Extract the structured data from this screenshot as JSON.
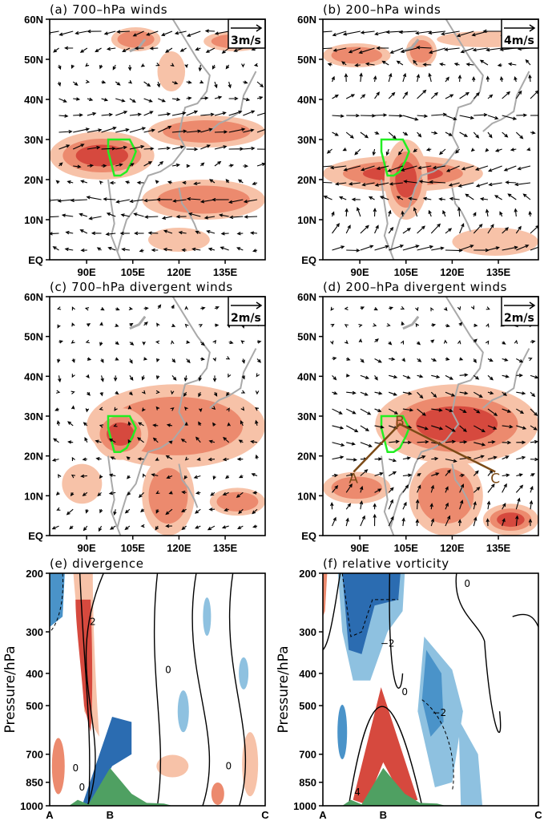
{
  "figure": {
    "colors": {
      "shade_light": "#f7c2a8",
      "shade_mid": "#ec8a6e",
      "shade_dark": "#d6493e",
      "shade_darkest": "#b92d2d",
      "blue_light": "#8ec1e0",
      "blue_mid": "#4a93c9",
      "blue_dark": "#2b6cb1",
      "terrain": "#4fa062",
      "coast": "#a9a9a9",
      "region_outline": "#22ee22",
      "section_line": "#7b4a16"
    }
  },
  "chart_data": [
    {
      "id": "a",
      "type": "vector-map",
      "title": "(a) 700–hPa winds",
      "reference_vector": "3m/s",
      "xticks": [
        "90E",
        "105E",
        "120E",
        "135E"
      ],
      "yticks": [
        "EQ",
        "10N",
        "20N",
        "30N",
        "40N",
        "50N",
        "60N"
      ],
      "xlim_deg": [
        78,
        148
      ],
      "ylim_deg": [
        0,
        60
      ],
      "shaded_regions_deg": [
        {
          "lon": [
            78,
            112
          ],
          "lat": [
            20,
            32
          ],
          "level": 3
        },
        {
          "lon": [
            110,
            148
          ],
          "lat": [
            28,
            36
          ],
          "level": 2
        },
        {
          "lon": [
            108,
            148
          ],
          "lat": [
            10,
            20
          ],
          "level": 2
        },
        {
          "lon": [
            98,
            114
          ],
          "lat": [
            52,
            58
          ],
          "level": 2
        },
        {
          "lon": [
            128,
            148
          ],
          "lat": [
            52,
            57
          ],
          "level": 2
        },
        {
          "lon": [
            113,
            122
          ],
          "lat": [
            42,
            52
          ],
          "level": 1
        },
        {
          "lon": [
            110,
            130
          ],
          "lat": [
            2,
            8
          ],
          "level": 1
        }
      ],
      "flow": [
        {
          "lat": 57,
          "u": -1,
          "v": -0.2
        },
        {
          "lat": 45,
          "u": 0.3,
          "v": -0.3
        },
        {
          "lat": 33,
          "u": 1.2,
          "v": 0.3
        },
        {
          "lat": 26,
          "u": 1.0,
          "v": 0.2
        },
        {
          "lat": 15,
          "u": -1.2,
          "v": 0
        },
        {
          "lat": 5,
          "u": -0.5,
          "v": 0.1
        }
      ]
    },
    {
      "id": "b",
      "type": "vector-map",
      "title": "(b) 200–hPa winds",
      "reference_vector": "4m/s",
      "xticks": [
        "90E",
        "105E",
        "120E",
        "135E"
      ],
      "yticks": [
        "EQ",
        "10N",
        "20N",
        "30N",
        "40N",
        "50N",
        "60N"
      ],
      "xlim_deg": [
        78,
        148
      ],
      "ylim_deg": [
        0,
        60
      ],
      "shaded_regions_deg": [
        {
          "lon": [
            78,
            100
          ],
          "lat": [
            48,
            54
          ],
          "level": 2
        },
        {
          "lon": [
            105,
            115
          ],
          "lat": [
            48,
            56
          ],
          "level": 2
        },
        {
          "lon": [
            115,
            148
          ],
          "lat": [
            53,
            57
          ],
          "level": 1
        },
        {
          "lon": [
            78,
            130
          ],
          "lat": [
            17,
            26
          ],
          "level": 3
        },
        {
          "lon": [
            98,
            112
          ],
          "lat": [
            10,
            30
          ],
          "level": 3
        },
        {
          "lon": [
            120,
            148
          ],
          "lat": [
            1,
            8
          ],
          "level": 1
        }
      ],
      "flow": [
        {
          "lat": 53,
          "u": -1.2,
          "v": -0.2
        },
        {
          "lat": 42,
          "u": 0.4,
          "v": 0.8
        },
        {
          "lat": 35,
          "u": 1.2,
          "v": -0.3
        },
        {
          "lat": 22,
          "u": -1.5,
          "v": -0.3
        },
        {
          "lat": 8,
          "u": 0.3,
          "v": 0.8
        },
        {
          "lat": 3,
          "u": 1.2,
          "v": 0.2
        }
      ]
    },
    {
      "id": "c",
      "type": "vector-map",
      "title": "(c) 700–hPa divergent winds",
      "reference_vector": "2m/s",
      "xticks": [
        "90E",
        "105E",
        "120E",
        "135E"
      ],
      "yticks": [
        "EQ",
        "10N",
        "20N",
        "30N",
        "40N",
        "50N",
        "60N"
      ],
      "xlim_deg": [
        78,
        148
      ],
      "ylim_deg": [
        0,
        60
      ],
      "shaded_regions_deg": [
        {
          "lon": [
            90,
            148
          ],
          "lat": [
            17,
            38
          ],
          "level": 2
        },
        {
          "lon": [
            92,
            110
          ],
          "lat": [
            19,
            32
          ],
          "level": 3
        },
        {
          "lon": [
            108,
            125
          ],
          "lat": [
            0,
            20
          ],
          "level": 2
        },
        {
          "lon": [
            130,
            148
          ],
          "lat": [
            5,
            12
          ],
          "level": 2
        },
        {
          "lon": [
            82,
            95
          ],
          "lat": [
            8,
            18
          ],
          "level": 1
        }
      ],
      "flow": [
        {
          "lat": 55,
          "u": 0.1,
          "v": 0.1
        },
        {
          "lat": 40,
          "u": 0.1,
          "v": -0.3
        },
        {
          "lat": 25,
          "u": -0.3,
          "v": 0.3
        },
        {
          "lat": 10,
          "u": -0.3,
          "v": -0.2
        }
      ]
    },
    {
      "id": "d",
      "type": "vector-map",
      "title": "(d) 200–hPa divergent winds",
      "reference_vector": "2m/s",
      "xticks": [
        "90E",
        "105E",
        "120E",
        "135E"
      ],
      "yticks": [
        "EQ",
        "10N",
        "20N",
        "30N",
        "40N",
        "50N",
        "60N"
      ],
      "xlim_deg": [
        78,
        148
      ],
      "ylim_deg": [
        0,
        60
      ],
      "section_points": [
        {
          "label": "A",
          "lon": 88,
          "lat": 16
        },
        {
          "label": "B",
          "lon": 103,
          "lat": 28
        },
        {
          "label": "C",
          "lon": 134,
          "lat": 16
        }
      ],
      "shaded_regions_deg": [
        {
          "lon": [
            95,
            148
          ],
          "lat": [
            18,
            38
          ],
          "level": 3
        },
        {
          "lon": [
            106,
            130
          ],
          "lat": [
            0,
            20
          ],
          "level": 2
        },
        {
          "lon": [
            78,
            100
          ],
          "lat": [
            8,
            16
          ],
          "level": 2
        },
        {
          "lon": [
            130,
            148
          ],
          "lat": [
            0,
            8
          ],
          "level": 3
        }
      ],
      "flow": [
        {
          "lat": 52,
          "u": 0.1,
          "v": 0.1
        },
        {
          "lat": 30,
          "u": 0.8,
          "v": -0.4
        },
        {
          "lat": 20,
          "u": 0.8,
          "v": 0
        },
        {
          "lat": 8,
          "u": 0.2,
          "v": 0.7
        }
      ]
    },
    {
      "id": "e",
      "type": "cross-section",
      "title": "(e) divergence",
      "ylabel": "Pressure/hPa",
      "yticks": [
        "200",
        "300",
        "400",
        "500",
        "700",
        "850",
        "1000"
      ],
      "xticks": [
        "A",
        "B",
        "C"
      ],
      "contour_labels": [
        "2",
        "0",
        "0",
        "0",
        "0"
      ],
      "terrain_peak_hpa": 770
    },
    {
      "id": "f",
      "type": "cross-section",
      "title": "(f) relative vorticity",
      "ylabel": "Pressure/hPa",
      "yticks": [
        "200",
        "300",
        "400",
        "500",
        "700",
        "850",
        "1000"
      ],
      "xticks": [
        "A",
        "B",
        "C"
      ],
      "contour_labels": [
        "0",
        "−2",
        "0",
        "−2",
        "4"
      ],
      "terrain_peak_hpa": 770
    }
  ]
}
